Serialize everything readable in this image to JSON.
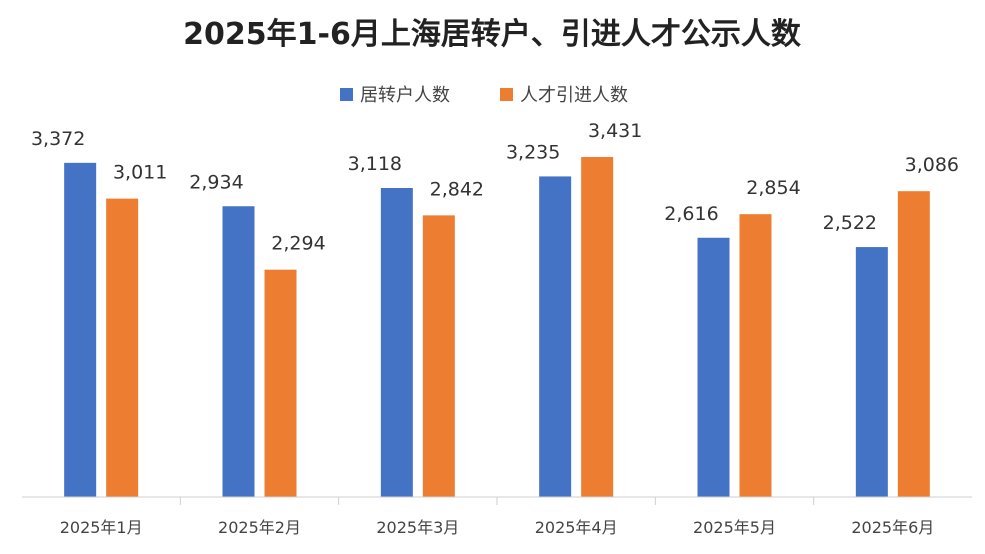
{
  "chart_data": {
    "type": "bar",
    "title": "2025年1-6月上海居转户、引进人才公示人数",
    "categories": [
      "2025年1月",
      "2025年2月",
      "2025年3月",
      "2025年4月",
      "2025年5月",
      "2025年6月"
    ],
    "series": [
      {
        "name": "居转户人数",
        "color": "#4472C4",
        "values": [
          3372,
          2934,
          3118,
          3235,
          2616,
          2522
        ]
      },
      {
        "name": "人才引进人数",
        "color": "#ED7D31",
        "values": [
          3011,
          2294,
          2842,
          3431,
          2854,
          3086
        ]
      }
    ],
    "value_labels": [
      [
        "3,372",
        "2,934",
        "3,118",
        "3,235",
        "2,616",
        "2,522"
      ],
      [
        "3,011",
        "2,294",
        "2,842",
        "3,431",
        "2,854",
        "3,086"
      ]
    ],
    "ylim": [
      0,
      3500
    ],
    "grid": false,
    "legend_position": "top-center",
    "xlabel": "",
    "ylabel": ""
  }
}
